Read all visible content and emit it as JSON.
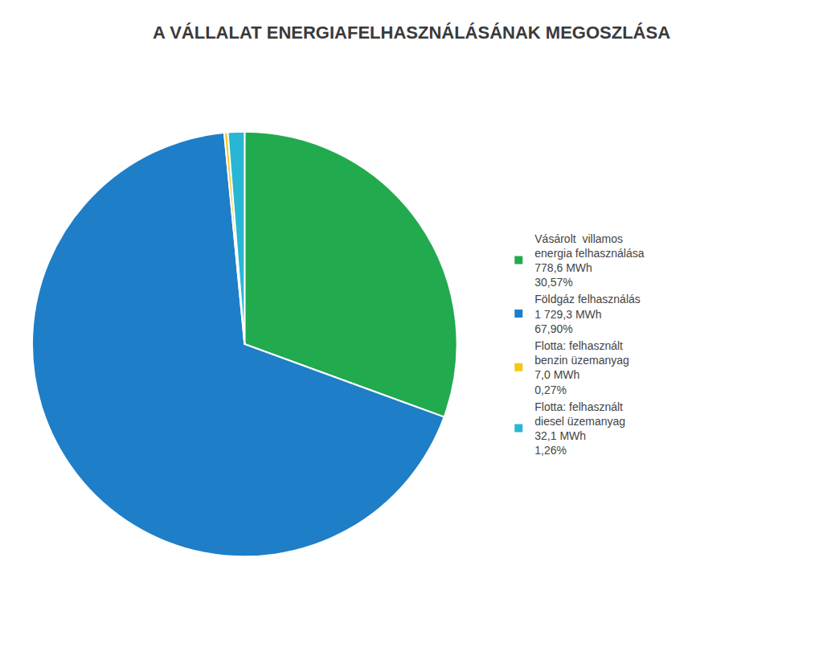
{
  "chart_data": {
    "type": "pie",
    "title": "A VÁLLALAT ENERGIAFELHASZNÁLÁSÁNAK MEGOSZLÁSA",
    "categories": [
      "Vásárolt  villamos\nenergia felhasználása\n778,6 MWh\n30,57%",
      "Földgáz felhasználás\n1 729,3 MWh\n67,90%",
      "Flotta: felhasznált\nbenzin üzemanyag\n7,0 MWh\n0,27%",
      "Flotta: felhasznált\ndiesel üzemanyag\n32,1 MWh\n1,26%"
    ],
    "values": [
      30.57,
      67.9,
      0.27,
      1.26
    ],
    "colors": [
      "#22aa4e",
      "#1e7ec8",
      "#f5c518",
      "#29b6d4"
    ],
    "legend": "right"
  }
}
